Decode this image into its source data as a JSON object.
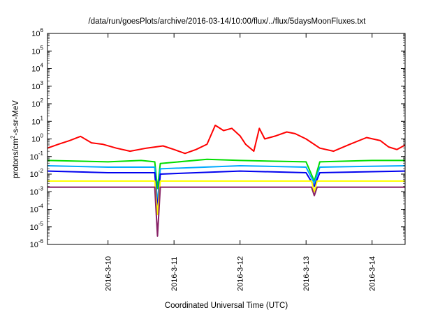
{
  "chart_data": {
    "type": "line",
    "title": "/data/run/goesPlots/archive/2016-03-14/10:00/flux/../flux/5daysMoonFluxes.txt",
    "xlabel": "Coordinated Universal Time (UTC)",
    "ylabel_parts": [
      "protons/cm",
      "2",
      "-s-sr-MeV"
    ],
    "y_scale": "log",
    "ylim": [
      1e-06,
      1000000.0
    ],
    "y_ticks": [
      {
        "base": "10",
        "exp": "-6",
        "value": -6
      },
      {
        "base": "10",
        "exp": "-5",
        "value": -5
      },
      {
        "base": "10",
        "exp": "-4",
        "value": -4
      },
      {
        "base": "10",
        "exp": "-3",
        "value": -3
      },
      {
        "base": "10",
        "exp": "-2",
        "value": -2
      },
      {
        "base": "10",
        "exp": "-1",
        "value": -1
      },
      {
        "base": "10",
        "exp": "0",
        "value": 0
      },
      {
        "base": "10",
        "exp": "1",
        "value": 1
      },
      {
        "base": "10",
        "exp": "2",
        "value": 2
      },
      {
        "base": "10",
        "exp": "3",
        "value": 3
      },
      {
        "base": "10",
        "exp": "4",
        "value": 4
      },
      {
        "base": "10",
        "exp": "5",
        "value": 5
      },
      {
        "base": "10",
        "exp": "6",
        "value": 6
      }
    ],
    "xlim": [
      "2016-03-09 02:00",
      "2016-03-14 12:00"
    ],
    "x_ticks": [
      {
        "label": "2016-3-10",
        "value": "2016-03-10 00:00"
      },
      {
        "label": "2016-3-11",
        "value": "2016-03-11 00:00"
      },
      {
        "label": "2016-3-12",
        "value": "2016-03-12 00:00"
      },
      {
        "label": "2016-3-13",
        "value": "2016-03-13 00:00"
      },
      {
        "label": "2016-3-14",
        "value": "2016-03-14 00:00"
      }
    ],
    "grid": false,
    "series": [
      {
        "color": "#ff0000",
        "points": [
          [
            "2016-03-09 02:00",
            0.3
          ],
          [
            "2016-03-09 06:00",
            0.5
          ],
          [
            "2016-03-09 10:00",
            0.8
          ],
          [
            "2016-03-09 14:00",
            1.4
          ],
          [
            "2016-03-09 18:00",
            0.6
          ],
          [
            "2016-03-09 22:00",
            0.5
          ],
          [
            "2016-03-10 03:00",
            0.3
          ],
          [
            "2016-03-10 08:00",
            0.2
          ],
          [
            "2016-03-10 14:00",
            0.3
          ],
          [
            "2016-03-10 20:00",
            0.4
          ],
          [
            "2016-03-11 00:00",
            0.25
          ],
          [
            "2016-03-11 04:00",
            0.15
          ],
          [
            "2016-03-11 08:00",
            0.25
          ],
          [
            "2016-03-11 12:00",
            0.5
          ],
          [
            "2016-03-11 15:00",
            6.0
          ],
          [
            "2016-03-11 18:00",
            3.0
          ],
          [
            "2016-03-11 21:00",
            4.0
          ],
          [
            "2016-03-12 00:00",
            1.5
          ],
          [
            "2016-03-12 02:00",
            0.5
          ],
          [
            "2016-03-12 05:00",
            0.2
          ],
          [
            "2016-03-12 07:00",
            4.0
          ],
          [
            "2016-03-12 09:00",
            1.0
          ],
          [
            "2016-03-12 13:00",
            1.5
          ],
          [
            "2016-03-12 17:00",
            2.5
          ],
          [
            "2016-03-12 20:00",
            2.0
          ],
          [
            "2016-03-13 00:00",
            1.0
          ],
          [
            "2016-03-13 05:00",
            0.3
          ],
          [
            "2016-03-13 10:00",
            0.2
          ],
          [
            "2016-03-13 16:00",
            0.5
          ],
          [
            "2016-03-13 22:00",
            1.2
          ],
          [
            "2016-03-14 03:00",
            0.8
          ],
          [
            "2016-03-14 06:00",
            0.35
          ],
          [
            "2016-03-14 09:00",
            0.25
          ],
          [
            "2016-03-14 12:00",
            0.45
          ]
        ]
      },
      {
        "color": "#00dd00",
        "points": [
          [
            "2016-03-09 02:00",
            0.06
          ],
          [
            "2016-03-10 00:00",
            0.05
          ],
          [
            "2016-03-10 12:00",
            0.06
          ],
          [
            "2016-03-10 17:00",
            0.05
          ],
          [
            "2016-03-10 18:00",
            0.0015
          ],
          [
            "2016-03-10 19:00",
            0.04
          ],
          [
            "2016-03-11 12:00",
            0.07
          ],
          [
            "2016-03-12 00:00",
            0.06
          ],
          [
            "2016-03-13 00:00",
            0.05
          ],
          [
            "2016-03-13 03:00",
            0.004
          ],
          [
            "2016-03-13 05:00",
            0.05
          ],
          [
            "2016-03-14 00:00",
            0.06
          ],
          [
            "2016-03-14 12:00",
            0.06
          ]
        ]
      },
      {
        "color": "#00aaff",
        "points": [
          [
            "2016-03-09 02:00",
            0.03
          ],
          [
            "2016-03-10 00:00",
            0.025
          ],
          [
            "2016-03-10 17:00",
            0.025
          ],
          [
            "2016-03-10 18:00",
            0.0002
          ],
          [
            "2016-03-10 19:00",
            0.02
          ],
          [
            "2016-03-12 00:00",
            0.03
          ],
          [
            "2016-03-13 00:00",
            0.025
          ],
          [
            "2016-03-13 03:00",
            0.003
          ],
          [
            "2016-03-13 05:00",
            0.025
          ],
          [
            "2016-03-14 12:00",
            0.03
          ]
        ]
      },
      {
        "color": "#0000ee",
        "points": [
          [
            "2016-03-09 02:00",
            0.015
          ],
          [
            "2016-03-10 00:00",
            0.012
          ],
          [
            "2016-03-10 17:00",
            0.012
          ],
          [
            "2016-03-10 18:00",
            0.0001
          ],
          [
            "2016-03-10 19:00",
            0.01
          ],
          [
            "2016-03-12 00:00",
            0.015
          ],
          [
            "2016-03-13 00:00",
            0.012
          ],
          [
            "2016-03-13 03:00",
            0.002
          ],
          [
            "2016-03-13 05:00",
            0.012
          ],
          [
            "2016-03-14 12:00",
            0.015
          ]
        ]
      },
      {
        "color": "#ffff00",
        "points": [
          [
            "2016-03-09 02:00",
            0.004
          ],
          [
            "2016-03-10 17:00",
            0.004
          ],
          [
            "2016-03-10 18:00",
            5e-05
          ],
          [
            "2016-03-10 19:00",
            0.004
          ],
          [
            "2016-03-13 02:00",
            0.004
          ],
          [
            "2016-03-13 03:00",
            0.001
          ],
          [
            "2016-03-13 04:00",
            0.004
          ],
          [
            "2016-03-14 12:00",
            0.004
          ]
        ]
      },
      {
        "color": "#882266",
        "points": [
          [
            "2016-03-09 02:00",
            0.0018
          ],
          [
            "2016-03-10 17:00",
            0.0018
          ],
          [
            "2016-03-10 18:00",
            3e-06
          ],
          [
            "2016-03-10 19:00",
            0.0018
          ],
          [
            "2016-03-13 02:00",
            0.0018
          ],
          [
            "2016-03-13 03:00",
            0.0006
          ],
          [
            "2016-03-13 04:00",
            0.0018
          ],
          [
            "2016-03-14 12:00",
            0.0018
          ]
        ]
      }
    ]
  }
}
